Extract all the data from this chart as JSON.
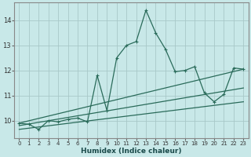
{
  "xlabel": "Humidex (Indice chaleur)",
  "ylabel": "",
  "bg_color": "#c8e8e8",
  "line_color": "#2a6b5a",
  "grid_color": "#a8c8c8",
  "xlim": [
    -0.5,
    23.5
  ],
  "ylim": [
    9.3,
    14.7
  ],
  "yticks": [
    10,
    11,
    12,
    13,
    14
  ],
  "xticks": [
    0,
    1,
    2,
    3,
    4,
    5,
    6,
    7,
    8,
    9,
    10,
    11,
    12,
    13,
    14,
    15,
    16,
    17,
    18,
    19,
    20,
    21,
    22,
    23
  ],
  "series": [
    {
      "x": [
        0,
        1,
        2,
        3,
        4,
        5,
        6,
        7,
        8,
        9,
        10,
        11,
        12,
        13,
        14,
        15,
        16,
        17,
        18,
        19,
        20,
        21,
        22,
        23
      ],
      "y": [
        9.9,
        9.85,
        9.65,
        10.0,
        9.95,
        10.05,
        10.1,
        9.95,
        11.8,
        10.4,
        12.5,
        13.0,
        13.15,
        14.4,
        13.5,
        12.85,
        11.95,
        12.0,
        12.15,
        11.1,
        10.75,
        11.05,
        12.1,
        12.05
      ],
      "marker": "+"
    },
    {
      "x": [
        0,
        23
      ],
      "y": [
        9.9,
        12.05
      ],
      "marker": null
    },
    {
      "x": [
        0,
        23
      ],
      "y": [
        9.8,
        11.3
      ],
      "marker": null
    },
    {
      "x": [
        0,
        23
      ],
      "y": [
        9.65,
        10.75
      ],
      "marker": null
    }
  ]
}
